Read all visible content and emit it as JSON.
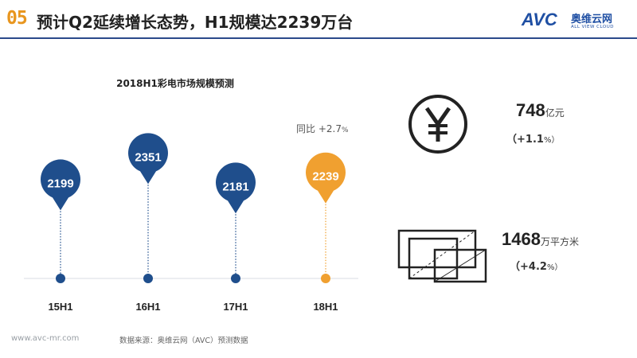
{
  "header": {
    "section_number": "05",
    "title": "预计Q2延续增长态势，H1规模达2239万台",
    "logo_text": "AVC",
    "logo_cn": "奥维云网",
    "logo_en": "ALL VIEW CLOUD"
  },
  "chart_data": {
    "type": "lollipop",
    "title": "2018H1彩电市场规模预测",
    "categories": [
      "15H1",
      "16H1",
      "17H1",
      "18H1"
    ],
    "values": [
      2199,
      2351,
      2181,
      2239
    ],
    "highlight_index": 3,
    "colors": {
      "normal": "#1f4e8c",
      "highlight": "#f0a030"
    },
    "annotation": {
      "label": "同比",
      "value": "+2.7",
      "unit": "%"
    }
  },
  "metrics": [
    {
      "icon": "yen-icon",
      "value": "748",
      "unit": "亿元",
      "change": "（+1.1",
      "change_unit": "%）"
    },
    {
      "icon": "screen-area-icon",
      "value": "1468",
      "unit": "万平方米",
      "change": "（+4.2",
      "change_unit": "%）"
    }
  ],
  "footer": {
    "url": "www.avc-mr.com",
    "source": "数据来源：奥维云网（AVC）预测数据"
  }
}
